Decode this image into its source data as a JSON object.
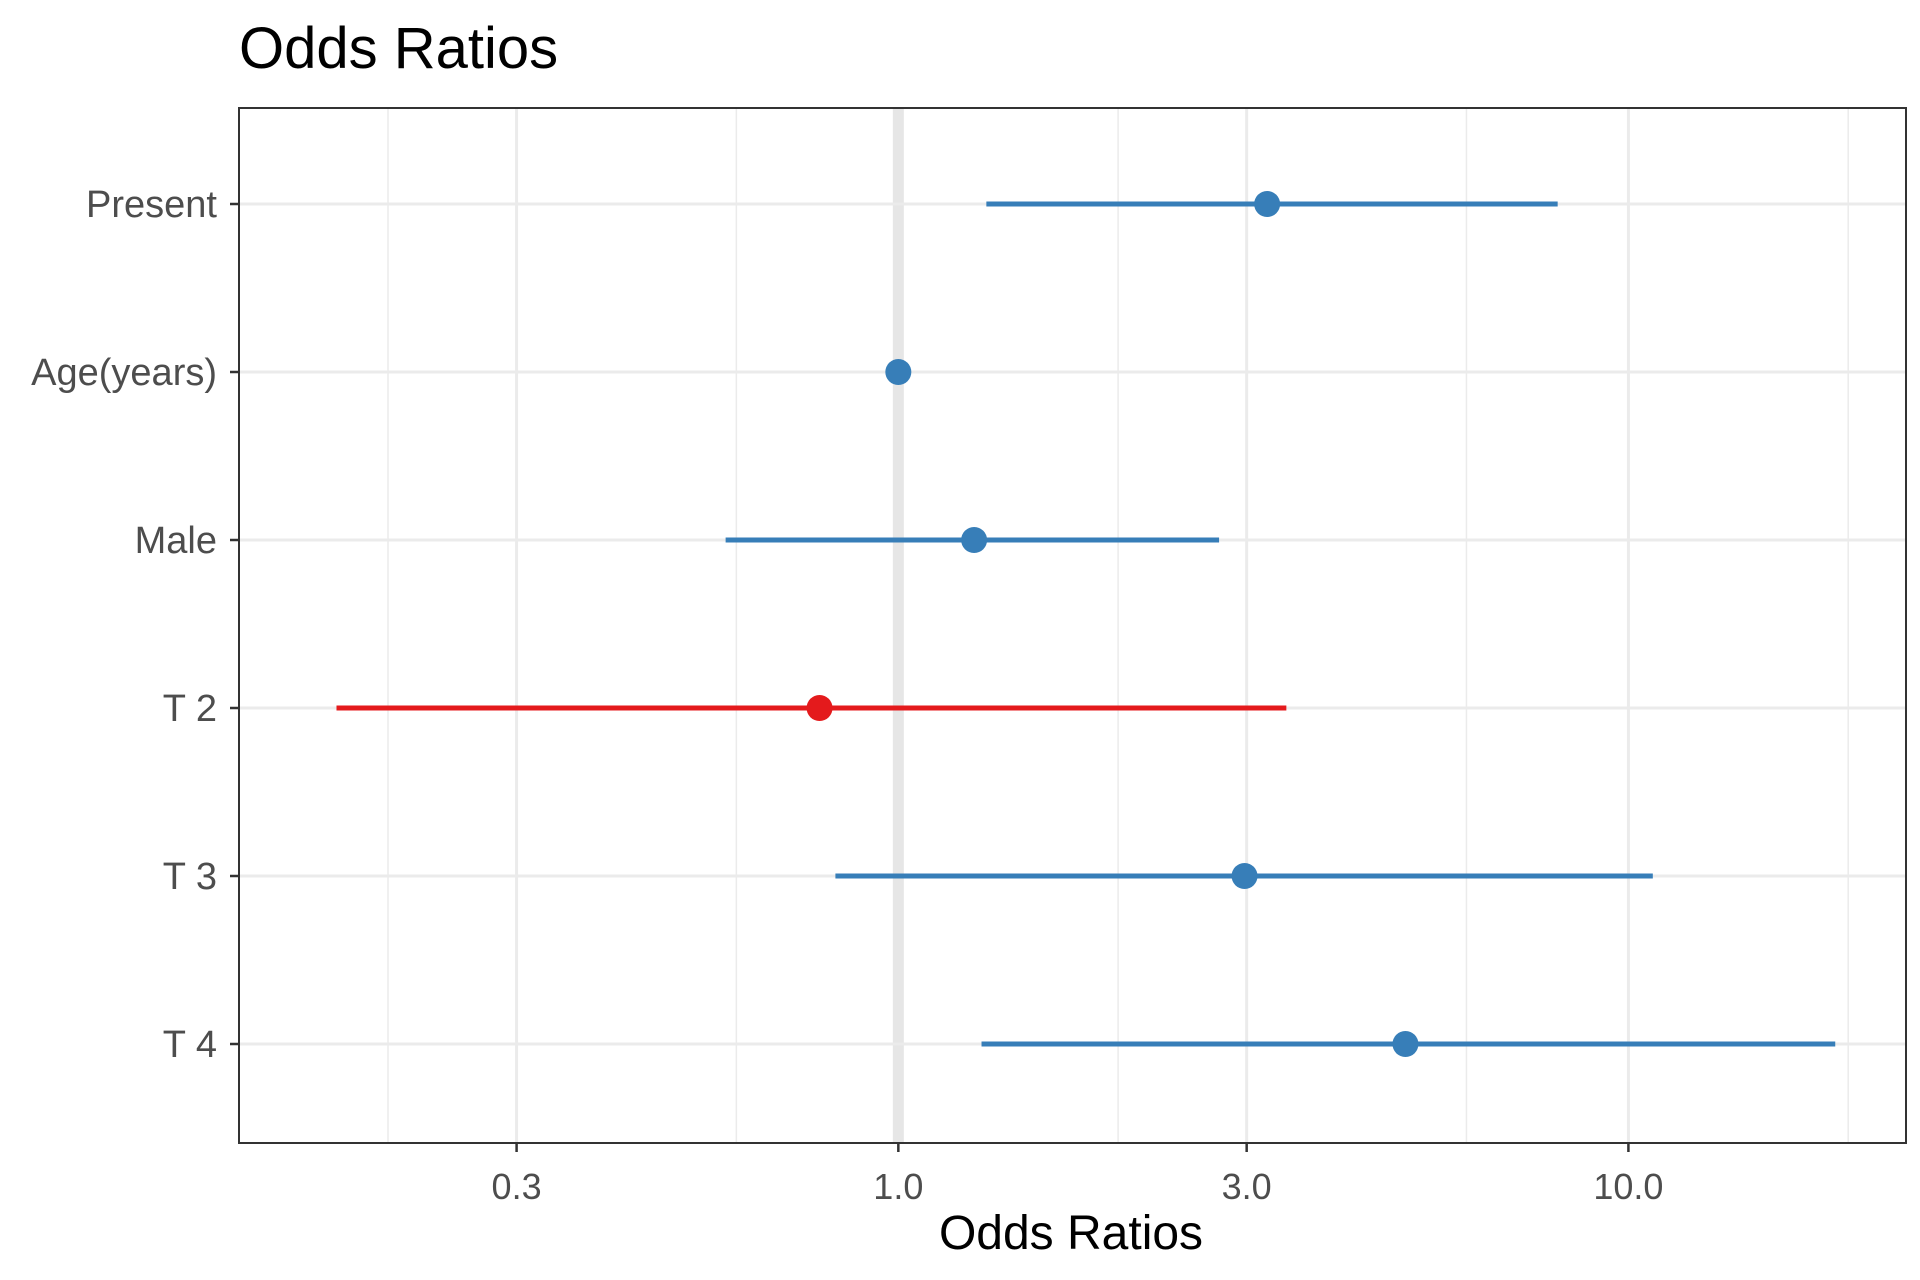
{
  "chart_data": {
    "type": "scatter",
    "title": "Odds Ratios",
    "xlabel": "Odds Ratios",
    "ylabel": "",
    "x_scale": "log10",
    "xlim": [
      0.125,
      24
    ],
    "x_ticks": [
      0.3,
      1.0,
      3.0,
      10.0
    ],
    "x_tick_labels": [
      "0.3",
      "1.0",
      "3.0",
      "10.0"
    ],
    "x_minor_ticks": [
      0.2,
      0.6,
      2.0,
      6.0,
      20.0
    ],
    "reference_line": 1.0,
    "grid": true,
    "categories": [
      "Present",
      "Age(years)",
      "Male",
      "T 2",
      "T 3",
      "T 4"
    ],
    "points": [
      {
        "label": "Present",
        "estimate": 3.2,
        "ci_low": 1.32,
        "ci_high": 8.0,
        "color": "#377eb8"
      },
      {
        "label": "Age(years)",
        "estimate": 1.0,
        "ci_low": 1.0,
        "ci_high": 1.0,
        "color": "#377eb8"
      },
      {
        "label": "Male",
        "estimate": 1.27,
        "ci_low": 0.58,
        "ci_high": 2.75,
        "color": "#377eb8"
      },
      {
        "label": "T 2",
        "estimate": 0.78,
        "ci_low": 0.17,
        "ci_high": 3.4,
        "color": "#e41a1c"
      },
      {
        "label": "T 3",
        "estimate": 2.98,
        "ci_low": 0.82,
        "ci_high": 10.8,
        "color": "#377eb8"
      },
      {
        "label": "T 4",
        "estimate": 4.95,
        "ci_low": 1.3,
        "ci_high": 19.2,
        "color": "#377eb8"
      }
    ]
  }
}
